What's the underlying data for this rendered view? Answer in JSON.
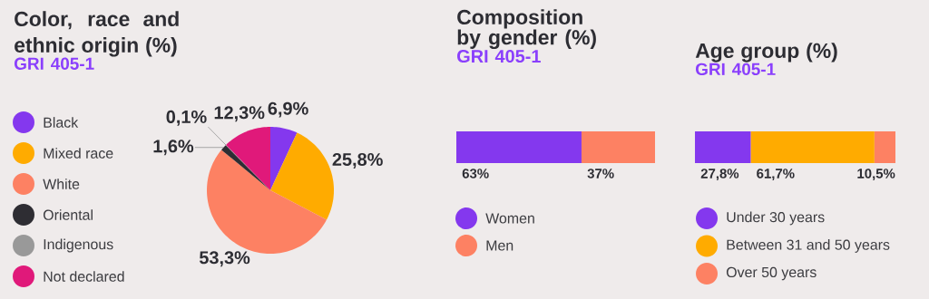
{
  "chart_data": [
    {
      "type": "pie",
      "title": "Color, race and ethnic origin (%)",
      "subtitle": "GRI 405-1",
      "categories": [
        "Black",
        "Mixed race",
        "White",
        "Oriental",
        "Indigenous",
        "Not declared"
      ],
      "values": [
        6.9,
        25.8,
        53.3,
        1.6,
        0.1,
        12.3
      ],
      "colors": [
        "#8438ee",
        "#ffab00",
        "#fd8163",
        "#2e2d33",
        "#999999",
        "#e0197a"
      ],
      "value_labels": [
        "6,9%",
        "25,8%",
        "53,3%",
        "1,6%",
        "0,1%",
        "12,3%"
      ],
      "legend": "left"
    },
    {
      "type": "bar",
      "orientation": "horizontal",
      "stacked": true,
      "title": "Composition by gender (%)",
      "subtitle": "GRI 405-1",
      "categories": [
        null
      ],
      "series": [
        {
          "name": "Women",
          "color": "#8438ee",
          "values": [
            63
          ],
          "value_labels": [
            "63%"
          ]
        },
        {
          "name": "Men",
          "color": "#fd8163",
          "values": [
            37
          ],
          "value_labels": [
            "37%"
          ]
        }
      ],
      "legend": "bottom"
    },
    {
      "type": "bar",
      "orientation": "horizontal",
      "stacked": true,
      "title": "Age group (%)",
      "subtitle": "GRI 405-1",
      "categories": [
        null
      ],
      "series": [
        {
          "name": "Under 30 years",
          "color": "#8438ee",
          "values": [
            27.8
          ],
          "value_labels": [
            "27,8%"
          ]
        },
        {
          "name": "Between 31 and 50 years",
          "color": "#ffab00",
          "values": [
            61.7
          ],
          "value_labels": [
            "61,7%"
          ]
        },
        {
          "name": "Over 50 years",
          "color": "#fd8163",
          "values": [
            10.5
          ],
          "value_labels": [
            "10,5%"
          ]
        }
      ],
      "legend": "bottom"
    }
  ]
}
